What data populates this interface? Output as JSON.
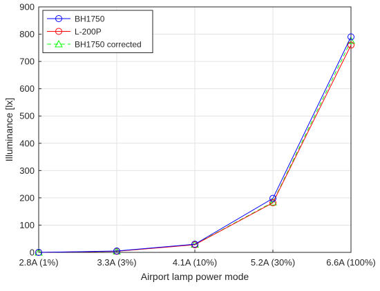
{
  "chart_data": {
    "type": "line",
    "title": "",
    "xlabel": "Airport lamp power mode",
    "ylabel": "Illuminance [lx]",
    "categories": [
      "2.8A (1%)",
      "3.3A (3%)",
      "4.1A (10%)",
      "5.2A (30%)",
      "6.6A (100%)"
    ],
    "ylim": [
      0,
      900
    ],
    "yticks": [
      0,
      100,
      200,
      300,
      400,
      500,
      600,
      700,
      800,
      900
    ],
    "grid": true,
    "legend_position": "top-left",
    "series": [
      {
        "name": "BH1750",
        "values": [
          0,
          5,
          30,
          198,
          790
        ],
        "color": "#0000ff",
        "line": "solid",
        "marker": "circle"
      },
      {
        "name": "L-200P",
        "values": [
          0,
          4,
          28,
          182,
          760
        ],
        "color": "#ff0000",
        "line": "solid",
        "marker": "circle"
      },
      {
        "name": "BH1750 corrected",
        "values": [
          0,
          4,
          29,
          184,
          776
        ],
        "color": "#00ff00",
        "line": "dashed",
        "marker": "triangle"
      }
    ]
  }
}
